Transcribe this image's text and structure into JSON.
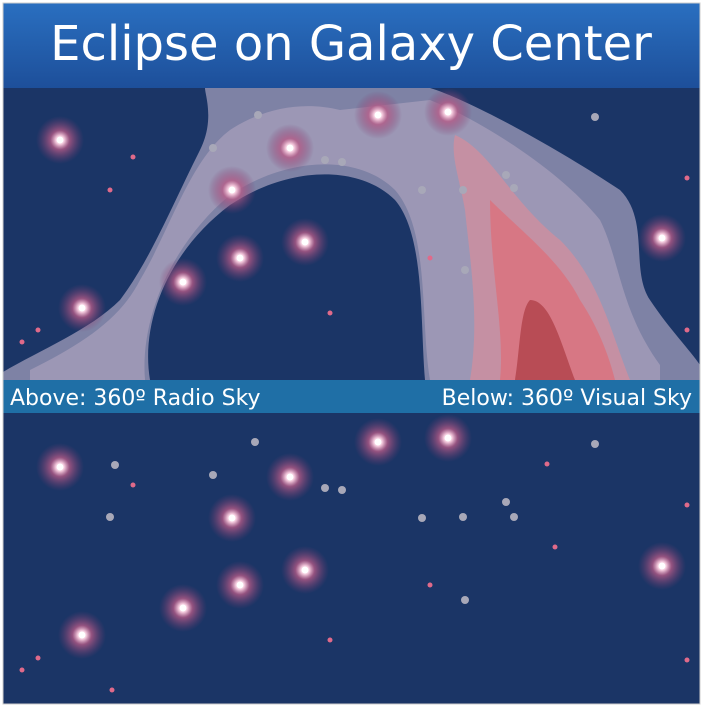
{
  "header": {
    "title": "Eclipse on Galaxy Center"
  },
  "labels": {
    "above": "Above: 360º Radio Sky",
    "below": "Below: 360º Visual Sky"
  }
}
